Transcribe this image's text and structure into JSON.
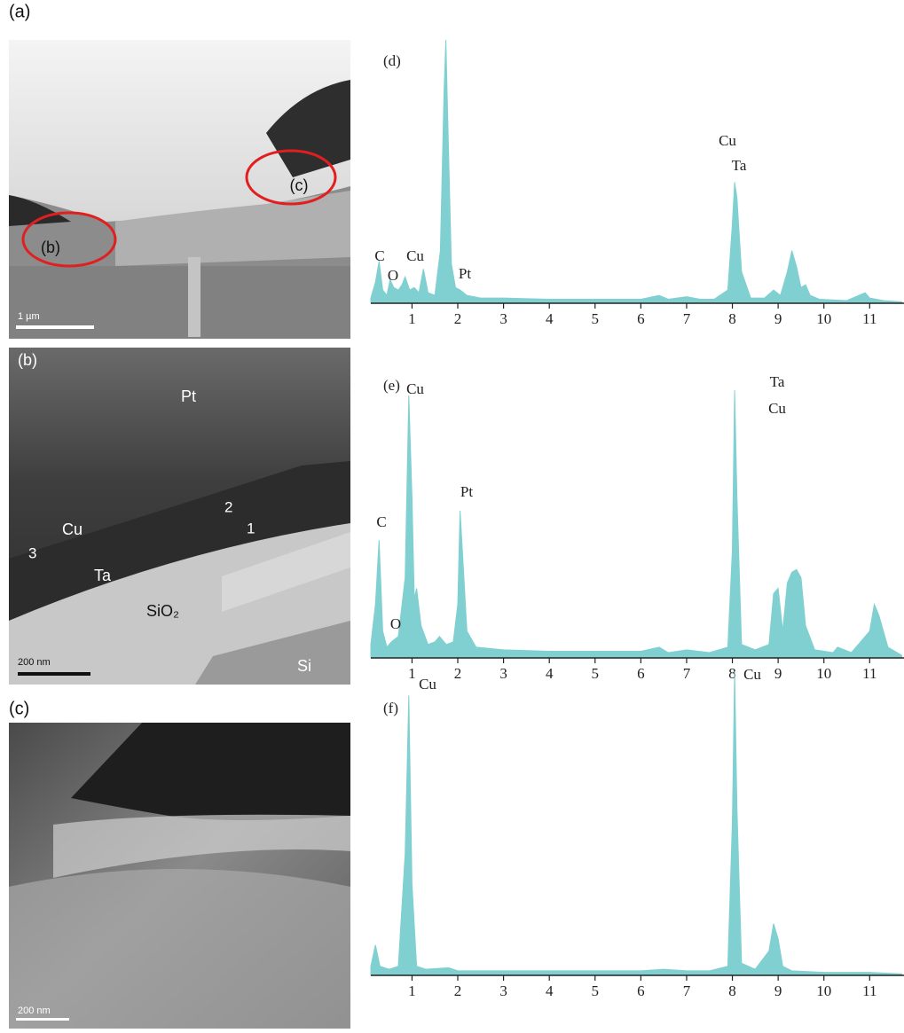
{
  "images": [
    {
      "label": "(a)",
      "scale_bar": "1 µm",
      "callouts": [
        "(b)",
        "(c)"
      ]
    },
    {
      "label": "(b)",
      "scale_bar": "200 nm",
      "texts": [
        "Pt",
        "Cu",
        "Ta",
        "SiO₂",
        "Si",
        "1",
        "2",
        "3"
      ]
    },
    {
      "label": "(c)",
      "scale_bar": "200 nm"
    }
  ],
  "chart_data": [
    {
      "type": "area",
      "title": "(d)",
      "color": "#80d0d2",
      "x": [
        0.1,
        0.2,
        0.28,
        0.36,
        0.45,
        0.52,
        0.6,
        0.7,
        0.78,
        0.85,
        0.95,
        1.05,
        1.15,
        1.25,
        1.35,
        1.5,
        1.62,
        1.7,
        1.74,
        1.78,
        1.86,
        1.95,
        2.05,
        2.2,
        2.5,
        3,
        4,
        5,
        6,
        6.4,
        6.6,
        7,
        7.3,
        7.6,
        7.9,
        8.0,
        8.05,
        8.1,
        8.2,
        8.4,
        8.7,
        8.9,
        9.05,
        9.2,
        9.3,
        9.4,
        9.5,
        9.6,
        9.7,
        9.9,
        10.5,
        10.9,
        11.0,
        11.3,
        11.7
      ],
      "values": [
        2,
        8,
        16,
        5,
        3,
        9,
        6,
        5,
        7,
        10,
        5,
        6,
        4,
        13,
        4,
        3,
        20,
        80,
        100,
        70,
        15,
        6,
        5,
        3,
        2,
        2,
        1.5,
        1.5,
        1.5,
        3,
        1.5,
        2.5,
        1.5,
        1.5,
        5,
        30,
        46,
        40,
        12,
        2,
        2,
        5,
        3,
        12,
        20,
        14,
        6,
        7,
        3,
        1.5,
        1,
        4,
        2,
        1,
        0.5
      ],
      "annotations": [
        "C",
        "O",
        "Cu",
        "Pt",
        "Cu",
        "Ta"
      ],
      "xlim": [
        0.1,
        11.75
      ],
      "ylim": [
        0,
        100
      ],
      "xticks": [
        1,
        2,
        3,
        4,
        5,
        6,
        7,
        8,
        9,
        10,
        11
      ]
    },
    {
      "type": "area",
      "title": "(e)",
      "color": "#80d0d2",
      "x": [
        0.1,
        0.2,
        0.28,
        0.36,
        0.45,
        0.55,
        0.7,
        0.85,
        0.93,
        1.0,
        1.05,
        1.1,
        1.2,
        1.35,
        1.5,
        1.6,
        1.75,
        1.9,
        2.0,
        2.05,
        2.1,
        2.2,
        2.4,
        3,
        4,
        5,
        6,
        6.4,
        6.6,
        7,
        7.5,
        7.9,
        8.0,
        8.05,
        8.1,
        8.2,
        8.5,
        8.8,
        8.9,
        9.0,
        9.1,
        9.2,
        9.3,
        9.4,
        9.5,
        9.6,
        9.8,
        10.2,
        10.3,
        10.6,
        11.0,
        11.1,
        11.2,
        11.4,
        11.7
      ],
      "values": [
        5,
        20,
        44,
        10,
        4,
        6,
        8,
        30,
        98,
        60,
        22,
        26,
        12,
        5,
        6,
        8,
        5,
        6,
        20,
        55,
        40,
        10,
        4,
        3,
        2.5,
        2.5,
        2.5,
        4,
        2,
        3,
        2,
        4,
        40,
        100,
        60,
        5,
        3,
        5,
        24,
        26,
        10,
        28,
        32,
        33,
        30,
        12,
        3,
        2,
        4,
        2,
        10,
        20,
        16,
        4,
        1
      ],
      "annotations": [
        "C",
        "O",
        "Cu",
        "Pt",
        "Ta",
        "Cu"
      ],
      "xlim": [
        0.1,
        11.75
      ],
      "ylim": [
        0,
        100
      ],
      "xticks": [
        1,
        2,
        3,
        4,
        5,
        6,
        7,
        8,
        9,
        10,
        11
      ]
    },
    {
      "type": "area",
      "title": "(f)",
      "color": "#80d0d2",
      "x": [
        0.1,
        0.2,
        0.3,
        0.5,
        0.7,
        0.85,
        0.93,
        1.0,
        1.1,
        1.3,
        1.8,
        2,
        3,
        4,
        5,
        6,
        6.5,
        7,
        7.5,
        7.9,
        8.0,
        8.05,
        8.1,
        8.2,
        8.5,
        8.8,
        8.9,
        9.0,
        9.1,
        9.3,
        10,
        11,
        11.7
      ],
      "values": [
        3,
        10,
        3,
        2,
        3,
        40,
        92,
        30,
        3,
        2,
        2.5,
        1.5,
        1.5,
        1.5,
        1.5,
        1.5,
        2,
        1.5,
        1.5,
        3,
        50,
        100,
        55,
        4,
        2,
        8,
        17,
        12,
        3,
        1.5,
        1,
        1,
        0.5
      ],
      "annotations": [
        "Cu",
        "Cu"
      ],
      "xlim": [
        0.1,
        11.75
      ],
      "ylim": [
        0,
        100
      ],
      "xticks": [
        1,
        2,
        3,
        4,
        5,
        6,
        7,
        8,
        9,
        10,
        11
      ]
    }
  ]
}
